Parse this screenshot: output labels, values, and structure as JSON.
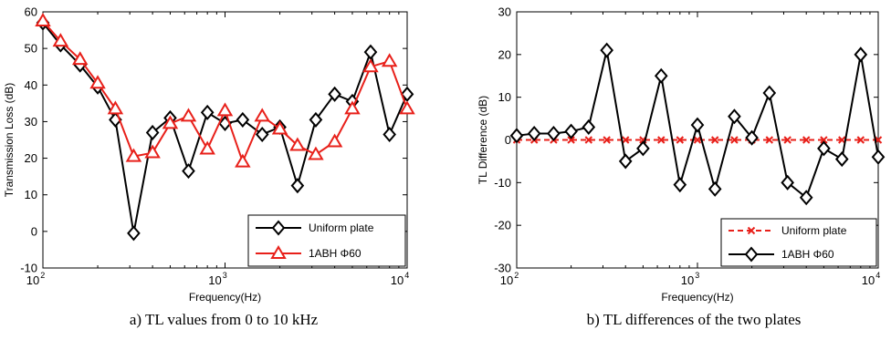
{
  "chart_data": [
    {
      "type": "line",
      "caption": "a) TL values from 0 to 10 kHz",
      "xlabel": "Frequency(Hz)",
      "ylabel": "Transmission Loss (dB)",
      "xscale": "log",
      "xlim": [
        100,
        10000
      ],
      "ylim": [
        -10,
        60
      ],
      "xticks": [
        {
          "base": "10",
          "exp": "2"
        },
        {
          "base": "10",
          "exp": "3"
        },
        {
          "base": "10",
          "exp": "4"
        }
      ],
      "yticks": [
        "-10",
        "0",
        "10",
        "20",
        "30",
        "40",
        "50",
        "60"
      ],
      "legend_position": "bottom-right",
      "grid": false,
      "x": [
        100,
        125,
        160,
        200,
        250,
        315,
        400,
        500,
        630,
        800,
        1000,
        1250,
        1600,
        2000,
        2500,
        3150,
        4000,
        5000,
        6300,
        8000,
        10000
      ],
      "series": [
        {
          "name": "Uniform plate",
          "color": "#000000",
          "marker": "diamond",
          "values": [
            57,
            51,
            45.5,
            39.5,
            30.5,
            -0.5,
            27,
            31,
            16.5,
            32.5,
            29.5,
            30.5,
            26.5,
            28.5,
            12.5,
            30.5,
            37.5,
            35.5,
            49,
            26.5,
            37.5
          ]
        },
        {
          "name": "1ABH Φ60",
          "color": "#e8201a",
          "marker": "triangle",
          "values": [
            57.5,
            52,
            47,
            40.5,
            33.5,
            20.5,
            21.5,
            29.5,
            31.5,
            22.5,
            33,
            19,
            31.5,
            28,
            23.5,
            21,
            24.5,
            33.5,
            45,
            46.5,
            33.5
          ]
        }
      ]
    },
    {
      "type": "line",
      "caption": "b) TL differences of the two plates",
      "xlabel": "Frequency(Hz)",
      "ylabel": "TL Difference (dB)",
      "xscale": "log",
      "xlim": [
        100,
        10000
      ],
      "ylim": [
        -30,
        30
      ],
      "xticks": [
        {
          "base": "10",
          "exp": "2"
        },
        {
          "base": "10",
          "exp": "3"
        },
        {
          "base": "10",
          "exp": "4"
        }
      ],
      "yticks": [
        "-30",
        "-20",
        "-10",
        "0",
        "10",
        "20",
        "30"
      ],
      "legend_position": "bottom-right",
      "grid": false,
      "x": [
        100,
        125,
        160,
        200,
        250,
        315,
        400,
        500,
        630,
        800,
        1000,
        1250,
        1600,
        2000,
        2500,
        3150,
        4000,
        5000,
        6300,
        8000,
        10000
      ],
      "series": [
        {
          "name": "Uniform plate",
          "color": "#e8201a",
          "marker": "x",
          "style": "dashed",
          "values": [
            0,
            0,
            0,
            0,
            0,
            0,
            0,
            0,
            0,
            0,
            0,
            0,
            0,
            0,
            0,
            0,
            0,
            0,
            0,
            0,
            0
          ]
        },
        {
          "name": "1ABH Φ60",
          "color": "#000000",
          "marker": "diamond",
          "style": "solid",
          "values": [
            1,
            1.5,
            1.5,
            2,
            3,
            21,
            -5,
            -2,
            15,
            -10.5,
            3.5,
            -11.5,
            5.5,
            0.5,
            11,
            -10,
            -13.5,
            -2,
            -4.5,
            20,
            -4
          ]
        }
      ]
    }
  ]
}
